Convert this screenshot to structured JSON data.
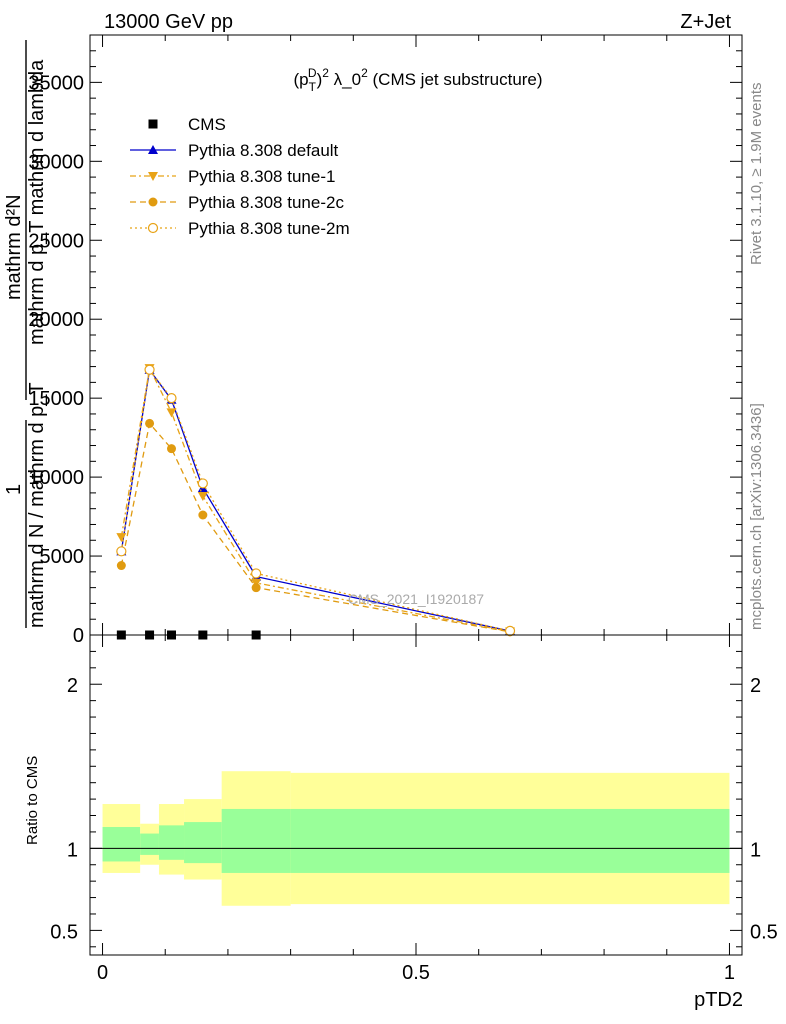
{
  "header": {
    "left": "13000 GeV pp",
    "right": "Z+Jet"
  },
  "side": {
    "rivet": "Rivet 3.1.10, ≥ 1.9M events",
    "mcplots": "mcplots.cern.ch [arXiv:1306.3436]"
  },
  "chart_data": [
    {
      "type": "line",
      "title": "(p_T^D)^2 λ_0^2 (CMS jet substructure)",
      "title_parts": {
        "open": "(p",
        "sup": "D",
        "sub": "T",
        "close": ")",
        "sup2": "2",
        "rest": " λ_0",
        "sup3": "2",
        "tail": " (CMS jet substructure)"
      },
      "ylabel_numerator": "mathrm d²N",
      "ylabel_denominator": "mathrm d p_T mathrm d lambda",
      "ylabel_prefix": "1",
      "ylabel_prefix_den": "mathrm d N / mathrm d p_T",
      "ylim": [
        0,
        38000
      ],
      "yticks": [
        0,
        5000,
        10000,
        15000,
        20000,
        25000,
        30000,
        35000
      ],
      "ytick_labels": [
        "0",
        "5000",
        "10000",
        "15000",
        "20000",
        "25000",
        "30000",
        "35000"
      ],
      "xlim": [
        -0.02,
        1.02
      ],
      "watermark": "CMS_2021_I1920187",
      "legend_position": "top-left",
      "series": [
        {
          "name": "CMS",
          "color": "#000000",
          "marker": "square",
          "x": [
            0.03,
            0.075,
            0.11,
            0.16,
            0.245
          ],
          "y": [
            0,
            0,
            0,
            0,
            0
          ]
        },
        {
          "name": "Pythia 8.308 default",
          "color": "#0000cc",
          "marker": "triangle-up",
          "line": "solid",
          "x": [
            0.03,
            0.075,
            0.11,
            0.16,
            0.245,
            0.65
          ],
          "y": [
            5300,
            16800,
            14900,
            9300,
            3700,
            250
          ]
        },
        {
          "name": "Pythia 8.308 tune-1",
          "color": "#e8a317",
          "marker": "triangle-down",
          "line": "dashdot",
          "x": [
            0.03,
            0.075,
            0.11,
            0.16,
            0.245,
            0.65
          ],
          "y": [
            6200,
            16900,
            14100,
            8800,
            3300,
            220
          ]
        },
        {
          "name": "Pythia 8.308 tune-2c",
          "color": "#e09b10",
          "marker": "circle",
          "line": "dashed",
          "x": [
            0.03,
            0.075,
            0.11,
            0.16,
            0.245,
            0.65
          ],
          "y": [
            4400,
            13400,
            11800,
            7600,
            3000,
            200
          ]
        },
        {
          "name": "Pythia 8.308 tune-2m",
          "color": "#e8a317",
          "marker": "circle-open",
          "line": "dotted",
          "x": [
            0.03,
            0.075,
            0.11,
            0.16,
            0.245,
            0.65
          ],
          "y": [
            5300,
            16800,
            15000,
            9600,
            3900,
            260
          ]
        }
      ]
    },
    {
      "type": "area",
      "ylabel": "Ratio to CMS",
      "xlabel": "pTD2",
      "ylim": [
        0.35,
        2.3
      ],
      "yticks": [
        0.5,
        1,
        2
      ],
      "ytick_labels": [
        "0.5",
        "1",
        "2"
      ],
      "xlim": [
        -0.02,
        1.02
      ],
      "xticks": [
        0,
        0.5,
        1
      ],
      "xtick_labels": [
        "0",
        "0.5",
        "1"
      ],
      "reference": 1,
      "bands": {
        "bins": [
          [
            0.0,
            0.06
          ],
          [
            0.06,
            0.09
          ],
          [
            0.09,
            0.13
          ],
          [
            0.13,
            0.19
          ],
          [
            0.19,
            0.3
          ],
          [
            0.3,
            1.0
          ]
        ],
        "inner_color": "#99ff99",
        "outer_color": "#ffff99",
        "inner": [
          [
            0.92,
            1.13
          ],
          [
            0.96,
            1.09
          ],
          [
            0.93,
            1.14
          ],
          [
            0.91,
            1.16
          ],
          [
            0.85,
            1.24
          ],
          [
            0.85,
            1.24
          ]
        ],
        "outer": [
          [
            0.85,
            1.27
          ],
          [
            0.9,
            1.15
          ],
          [
            0.84,
            1.27
          ],
          [
            0.81,
            1.3
          ],
          [
            0.65,
            1.47
          ],
          [
            0.66,
            1.46
          ]
        ]
      }
    }
  ]
}
